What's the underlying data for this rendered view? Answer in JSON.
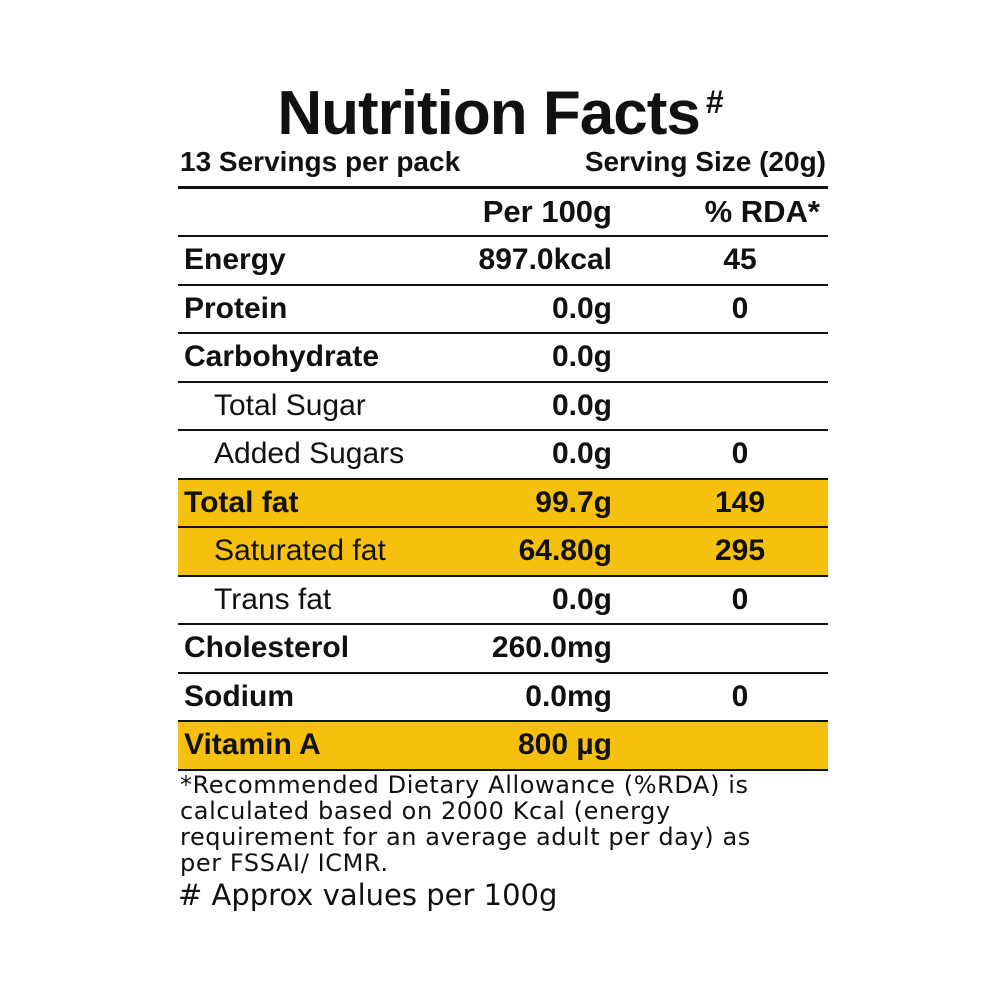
{
  "title": "Nutrition Facts",
  "title_mark": "#",
  "servings": "13 Servings per pack",
  "serving_size": "Serving Size (20g)",
  "table": {
    "columns": [
      "Per 100g",
      "% RDA*"
    ],
    "rows": [
      {
        "name": "Energy",
        "per_100g": "897.0kcal",
        "rda": "45"
      },
      {
        "name": "Protein",
        "per_100g": "0.0g",
        "rda": "0"
      },
      {
        "name": "Carbohydrate",
        "per_100g": "0.0g"
      },
      {
        "name": "Total Sugar",
        "per_100g": "0.0g",
        "indent": true
      },
      {
        "name": "Added Sugars",
        "per_100g": "0.0g",
        "rda": "0",
        "indent": true
      },
      {
        "name": "Total fat",
        "per_100g": "99.7g",
        "rda": "149",
        "highlight": true
      },
      {
        "name": "Saturated fat",
        "per_100g": "64.80g",
        "rda": "295",
        "indent": true,
        "highlight": true
      },
      {
        "name": "Trans fat",
        "per_100g": "0.0g",
        "rda": "0",
        "indent": true
      },
      {
        "name": "Cholesterol",
        "per_100g": "260.0mg"
      },
      {
        "name": "Sodium",
        "per_100g": "0.0mg",
        "rda": "0"
      },
      {
        "name": "Vitamin A",
        "per_100g": "800 µg",
        "highlight": true
      }
    ]
  },
  "footnote": {
    "lines": [
      "*Recommended Dietary Allowance (%RDA) is",
      "calculated based on 2000 Kcal (energy",
      "requirement for an average adult per day) as",
      "per FSSAI/ ICMR."
    ],
    "approx": "# Approx values per 100g"
  }
}
